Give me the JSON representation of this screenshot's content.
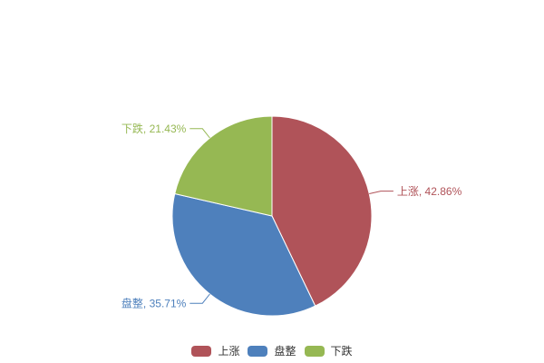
{
  "chart_data": {
    "type": "pie",
    "title": "",
    "categories": [
      "上涨",
      "盘整",
      "下跌"
    ],
    "values": [
      42.86,
      35.71,
      21.43
    ],
    "unit": "%",
    "slices": [
      {
        "name": "上涨",
        "value": 42.86,
        "color": "#b05359",
        "label": "上涨, 42.86%"
      },
      {
        "name": "盘整",
        "value": 35.71,
        "color": "#4e80bc",
        "label": "盘整, 35.71%"
      },
      {
        "name": "下跌",
        "value": 21.43,
        "color": "#96b853",
        "label": "下跌, 21.43%"
      }
    ],
    "start_angle": "top",
    "direction": "clockwise",
    "background": "#ffffff",
    "legend": {
      "position": "bottom-center",
      "items": [
        "上涨",
        "盘整",
        "下跌"
      ],
      "text_color": "#333333"
    }
  }
}
